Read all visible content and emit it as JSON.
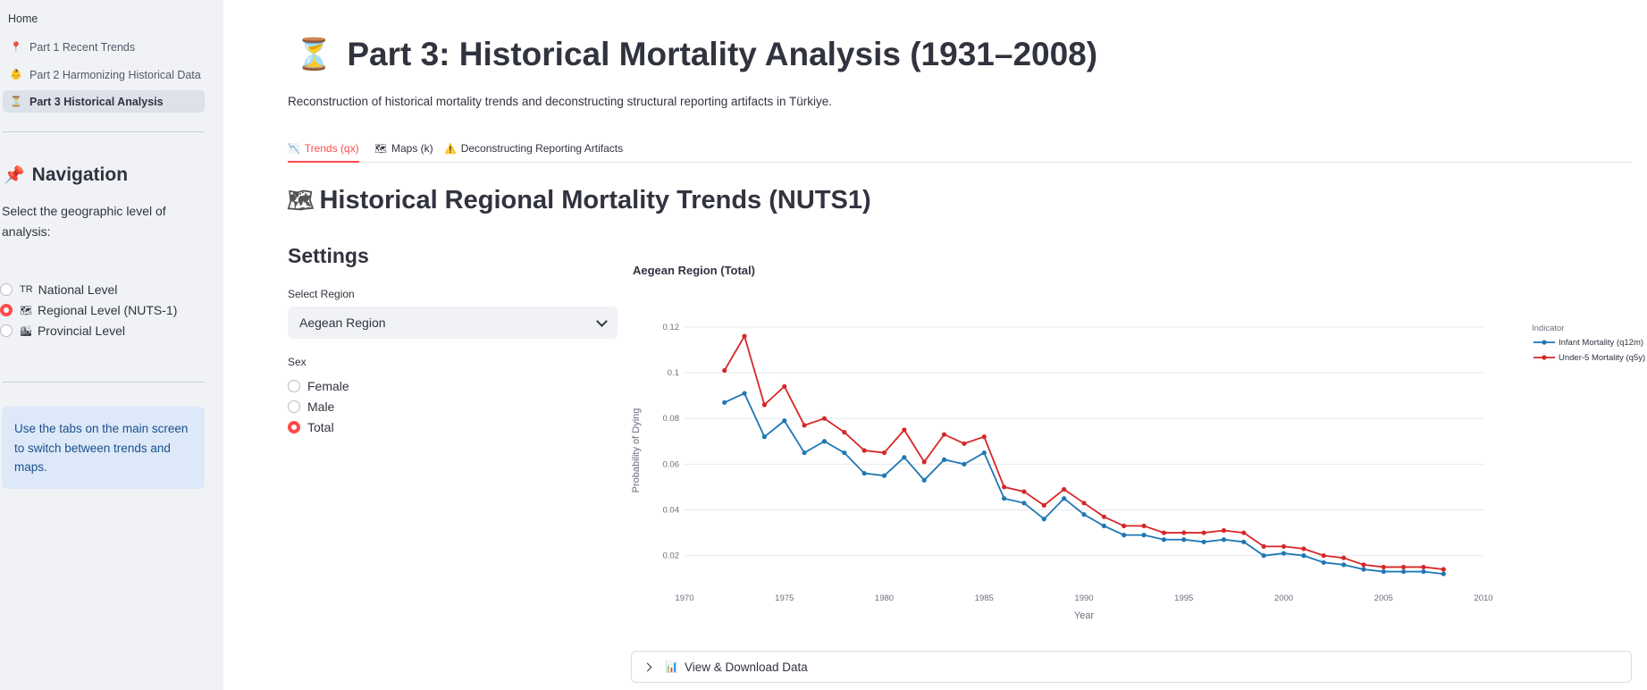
{
  "sidebar": {
    "home_label": "Home",
    "pages": [
      {
        "icon": "📍",
        "label": "Part 1 Recent Trends"
      },
      {
        "icon": "👶",
        "label": "Part 2 Harmonizing Historical Data"
      },
      {
        "icon": "⏳",
        "label": "Part 3 Historical Analysis"
      }
    ],
    "nav_heading": "Navigation",
    "nav_icon": "📌",
    "level_prompt": "Select the geographic level of analysis:",
    "levels": [
      {
        "tag": "TR",
        "label": "National Level",
        "checked": false
      },
      {
        "tag": "🗺",
        "label": "Regional Level (NUTS-1)",
        "checked": true
      },
      {
        "tag": "🏙",
        "label": "Provincial Level",
        "checked": false
      }
    ],
    "info": "Use the tabs on the main screen to switch between trends and maps."
  },
  "main": {
    "title_icon": "⏳",
    "title": "Part 3: Historical Mortality Analysis (1931–2008)",
    "subtitle": "Reconstruction of historical mortality trends and deconstructing structural reporting artifacts in Türkiye.",
    "tabs": [
      {
        "icon": "📉",
        "label": "Trends (qx)"
      },
      {
        "icon": "🗺",
        "label": "Maps (k)"
      },
      {
        "icon": "⚠️",
        "label": "Deconstructing Reporting Artifacts"
      }
    ],
    "section_icon": "🗺",
    "section_title": "Historical Regional Mortality Trends (NUTS1)",
    "settings_heading": "Settings",
    "region_label": "Select Region",
    "region_value": "Aegean Region",
    "sex_label": "Sex",
    "sex_options": [
      {
        "label": "Female",
        "checked": false
      },
      {
        "label": "Male",
        "checked": false
      },
      {
        "label": "Total",
        "checked": true
      }
    ],
    "expander_icon": "📊",
    "expander_label": "View & Download Data"
  },
  "chart_data": {
    "type": "line",
    "title": "Aegean Region (Total)",
    "xlabel": "Year",
    "ylabel": "Probability of Dying",
    "xlim": [
      1970,
      2010
    ],
    "ylim": [
      0.005,
      0.127
    ],
    "xticks": [
      1970,
      1975,
      1980,
      1985,
      1990,
      1995,
      2000,
      2005,
      2010
    ],
    "yticks": [
      0.02,
      0.04,
      0.06,
      0.08,
      0.1,
      0.12
    ],
    "grid": true,
    "legend_title": "Indicator",
    "legend_position": "top-right",
    "x": [
      1972,
      1973,
      1974,
      1975,
      1976,
      1977,
      1978,
      1979,
      1980,
      1981,
      1982,
      1983,
      1984,
      1985,
      1986,
      1987,
      1988,
      1989,
      1990,
      1991,
      1992,
      1993,
      1994,
      1995,
      1996,
      1997,
      1998,
      1999,
      2000,
      2001,
      2002,
      2003,
      2004,
      2005,
      2006,
      2007,
      2008
    ],
    "series": [
      {
        "name": "Infant Mortality (q12m)",
        "color": "#1f77b4",
        "values": [
          0.087,
          0.091,
          0.072,
          0.079,
          0.065,
          0.07,
          0.065,
          0.056,
          0.055,
          0.063,
          0.053,
          0.062,
          0.06,
          0.065,
          0.045,
          0.043,
          0.036,
          0.045,
          0.038,
          0.033,
          0.029,
          0.029,
          0.027,
          0.027,
          0.026,
          0.027,
          0.026,
          0.02,
          0.021,
          0.02,
          0.017,
          0.016,
          0.014,
          0.013,
          0.013,
          0.013,
          0.012
        ]
      },
      {
        "name": "Under-5 Mortality (q5y)",
        "color": "#d62728",
        "values": [
          0.101,
          0.116,
          0.086,
          0.094,
          0.077,
          0.08,
          0.074,
          0.066,
          0.065,
          0.075,
          0.061,
          0.073,
          0.069,
          0.072,
          0.05,
          0.048,
          0.042,
          0.049,
          0.043,
          0.037,
          0.033,
          0.033,
          0.03,
          0.03,
          0.03,
          0.031,
          0.03,
          0.024,
          0.024,
          0.023,
          0.02,
          0.019,
          0.016,
          0.015,
          0.015,
          0.015,
          0.014
        ]
      }
    ]
  }
}
